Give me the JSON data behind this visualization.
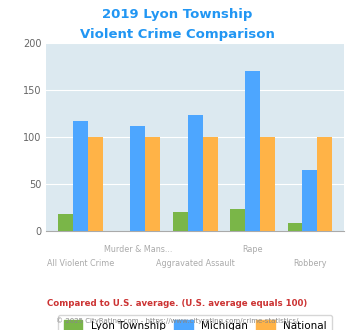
{
  "title_line1": "2019 Lyon Township",
  "title_line2": "Violent Crime Comparison",
  "category_row1": [
    "",
    "Murder & Mans...",
    "",
    "Rape",
    ""
  ],
  "category_row2": [
    "All Violent Crime",
    "",
    "Aggravated Assault",
    "",
    "Robbery"
  ],
  "lyon_township": [
    18,
    0,
    20,
    23,
    8
  ],
  "michigan": [
    117,
    112,
    123,
    170,
    65
  ],
  "national": [
    100,
    100,
    100,
    100,
    100
  ],
  "color_lyon": "#7ab648",
  "color_michigan": "#4da6ff",
  "color_national": "#ffb347",
  "ylim": [
    0,
    200
  ],
  "yticks": [
    0,
    50,
    100,
    150,
    200
  ],
  "title_color": "#2196f3",
  "legend_label_lyon": "Lyon Township",
  "legend_label_michigan": "Michigan",
  "legend_label_national": "National",
  "footnote1": "Compared to U.S. average. (U.S. average equals 100)",
  "footnote2": "© 2025 CityRating.com - https://www.cityrating.com/crime-statistics/",
  "footnote1_color": "#cc3333",
  "footnote2_color": "#888888",
  "bg_color": "#dce9f0",
  "fig_bg_color": "#ffffff"
}
